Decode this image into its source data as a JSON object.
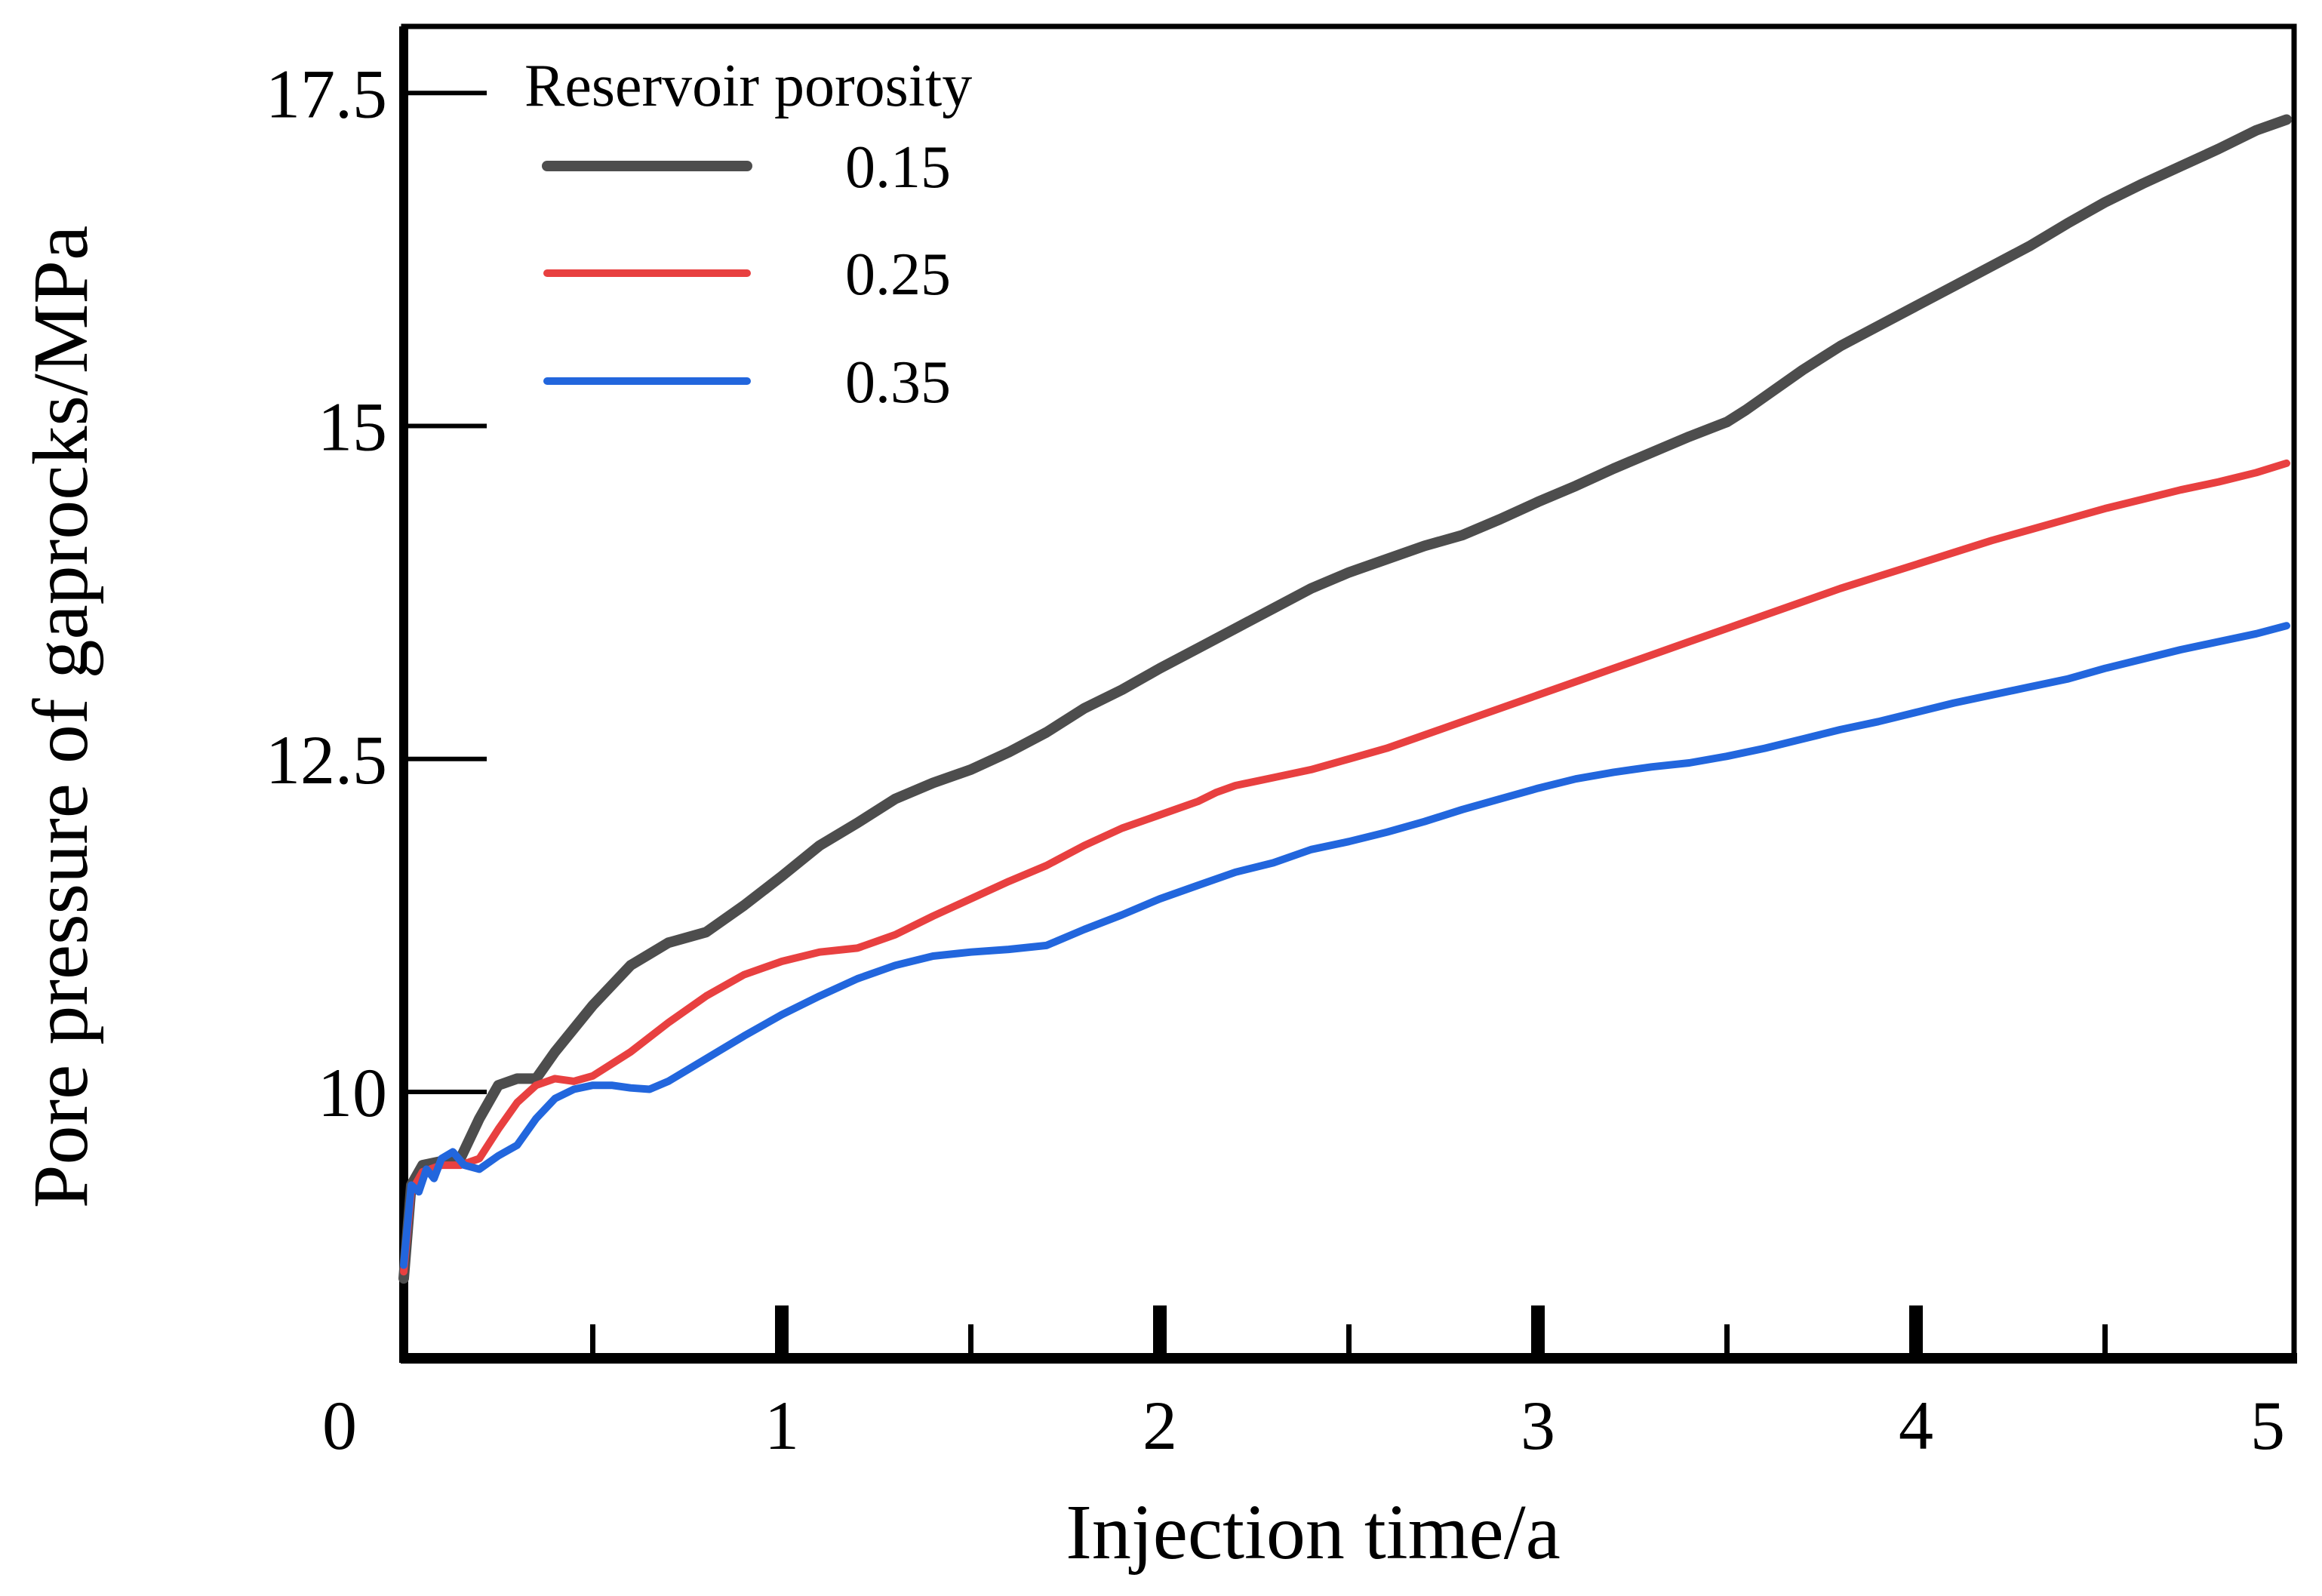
{
  "chart_data": {
    "type": "line",
    "title": "",
    "xlabel": "Injection time/a",
    "ylabel": "Pore pressure of gaprocks/MPa",
    "xlim": [
      0,
      5
    ],
    "ylim": [
      8.0,
      18.0
    ],
    "x_ticks": [
      {
        "value": 0,
        "label": "0"
      },
      {
        "value": 1,
        "label": "1"
      },
      {
        "value": 2,
        "label": "2"
      },
      {
        "value": 3,
        "label": "3"
      },
      {
        "value": 4,
        "label": "4"
      },
      {
        "value": 5,
        "label": "5"
      }
    ],
    "x_minor_ticks": [
      0.5,
      1.5,
      2.5,
      3.5,
      4.5
    ],
    "y_ticks": [
      {
        "value": 10,
        "label": "10"
      },
      {
        "value": 12.5,
        "label": "12.5"
      },
      {
        "value": 15,
        "label": "15"
      },
      {
        "value": 17.5,
        "label": "17.5"
      }
    ],
    "grid": false,
    "legend": {
      "title": "Reservoir porosity",
      "placement": "top-left"
    },
    "series": [
      {
        "name": "0.15",
        "color": "#4d4d4d",
        "points": [
          [
            0.0,
            8.6
          ],
          [
            0.02,
            9.3
          ],
          [
            0.05,
            9.45
          ],
          [
            0.1,
            9.48
          ],
          [
            0.15,
            9.5
          ],
          [
            0.2,
            9.8
          ],
          [
            0.25,
            10.05
          ],
          [
            0.3,
            10.1
          ],
          [
            0.35,
            10.1
          ],
          [
            0.4,
            10.3
          ],
          [
            0.5,
            10.65
          ],
          [
            0.6,
            10.95
          ],
          [
            0.7,
            11.12
          ],
          [
            0.8,
            11.2
          ],
          [
            0.9,
            11.4
          ],
          [
            1.0,
            11.62
          ],
          [
            1.1,
            11.85
          ],
          [
            1.2,
            12.02
          ],
          [
            1.3,
            12.2
          ],
          [
            1.4,
            12.32
          ],
          [
            1.5,
            12.42
          ],
          [
            1.6,
            12.55
          ],
          [
            1.7,
            12.7
          ],
          [
            1.8,
            12.88
          ],
          [
            1.9,
            13.02
          ],
          [
            2.0,
            13.18
          ],
          [
            2.1,
            13.33
          ],
          [
            2.2,
            13.48
          ],
          [
            2.3,
            13.63
          ],
          [
            2.4,
            13.78
          ],
          [
            2.5,
            13.9
          ],
          [
            2.6,
            14.0
          ],
          [
            2.7,
            14.1
          ],
          [
            2.8,
            14.18
          ],
          [
            2.9,
            14.3
          ],
          [
            3.0,
            14.43
          ],
          [
            3.1,
            14.55
          ],
          [
            3.2,
            14.68
          ],
          [
            3.3,
            14.8
          ],
          [
            3.4,
            14.92
          ],
          [
            3.5,
            15.03
          ],
          [
            3.55,
            15.12
          ],
          [
            3.6,
            15.22
          ],
          [
            3.7,
            15.42
          ],
          [
            3.8,
            15.6
          ],
          [
            3.9,
            15.75
          ],
          [
            4.0,
            15.9
          ],
          [
            4.1,
            16.05
          ],
          [
            4.2,
            16.2
          ],
          [
            4.3,
            16.35
          ],
          [
            4.4,
            16.52
          ],
          [
            4.5,
            16.68
          ],
          [
            4.6,
            16.82
          ],
          [
            4.7,
            16.95
          ],
          [
            4.8,
            17.08
          ],
          [
            4.9,
            17.22
          ],
          [
            4.98,
            17.3
          ]
        ]
      },
      {
        "name": "0.25",
        "color": "#e84040",
        "points": [
          [
            0.0,
            8.65
          ],
          [
            0.02,
            9.25
          ],
          [
            0.05,
            9.4
          ],
          [
            0.1,
            9.45
          ],
          [
            0.15,
            9.45
          ],
          [
            0.2,
            9.5
          ],
          [
            0.25,
            9.72
          ],
          [
            0.3,
            9.92
          ],
          [
            0.35,
            10.05
          ],
          [
            0.4,
            10.1
          ],
          [
            0.45,
            10.08
          ],
          [
            0.5,
            10.12
          ],
          [
            0.6,
            10.3
          ],
          [
            0.7,
            10.52
          ],
          [
            0.8,
            10.72
          ],
          [
            0.9,
            10.88
          ],
          [
            1.0,
            10.98
          ],
          [
            1.1,
            11.05
          ],
          [
            1.2,
            11.08
          ],
          [
            1.3,
            11.18
          ],
          [
            1.4,
            11.32
          ],
          [
            1.5,
            11.45
          ],
          [
            1.6,
            11.58
          ],
          [
            1.7,
            11.7
          ],
          [
            1.8,
            11.85
          ],
          [
            1.9,
            11.98
          ],
          [
            2.0,
            12.08
          ],
          [
            2.1,
            12.18
          ],
          [
            2.15,
            12.25
          ],
          [
            2.2,
            12.3
          ],
          [
            2.3,
            12.36
          ],
          [
            2.4,
            12.42
          ],
          [
            2.5,
            12.5
          ],
          [
            2.6,
            12.58
          ],
          [
            2.7,
            12.68
          ],
          [
            2.8,
            12.78
          ],
          [
            2.9,
            12.88
          ],
          [
            3.0,
            12.98
          ],
          [
            3.1,
            13.08
          ],
          [
            3.2,
            13.18
          ],
          [
            3.3,
            13.28
          ],
          [
            3.4,
            13.38
          ],
          [
            3.5,
            13.48
          ],
          [
            3.6,
            13.58
          ],
          [
            3.7,
            13.68
          ],
          [
            3.8,
            13.78
          ],
          [
            3.9,
            13.87
          ],
          [
            4.0,
            13.96
          ],
          [
            4.1,
            14.05
          ],
          [
            4.2,
            14.14
          ],
          [
            4.3,
            14.22
          ],
          [
            4.4,
            14.3
          ],
          [
            4.5,
            14.38
          ],
          [
            4.6,
            14.45
          ],
          [
            4.7,
            14.52
          ],
          [
            4.8,
            14.58
          ],
          [
            4.9,
            14.65
          ],
          [
            4.98,
            14.72
          ]
        ]
      },
      {
        "name": "0.35",
        "color": "#2266dd",
        "points": [
          [
            0.0,
            8.7
          ],
          [
            0.02,
            9.3
          ],
          [
            0.04,
            9.25
          ],
          [
            0.06,
            9.42
          ],
          [
            0.08,
            9.35
          ],
          [
            0.1,
            9.5
          ],
          [
            0.13,
            9.55
          ],
          [
            0.16,
            9.45
          ],
          [
            0.2,
            9.42
          ],
          [
            0.25,
            9.52
          ],
          [
            0.3,
            9.6
          ],
          [
            0.35,
            9.8
          ],
          [
            0.4,
            9.95
          ],
          [
            0.45,
            10.02
          ],
          [
            0.5,
            10.05
          ],
          [
            0.55,
            10.05
          ],
          [
            0.6,
            10.03
          ],
          [
            0.65,
            10.02
          ],
          [
            0.7,
            10.08
          ],
          [
            0.8,
            10.25
          ],
          [
            0.9,
            10.42
          ],
          [
            1.0,
            10.58
          ],
          [
            1.1,
            10.72
          ],
          [
            1.2,
            10.85
          ],
          [
            1.3,
            10.95
          ],
          [
            1.4,
            11.02
          ],
          [
            1.5,
            11.05
          ],
          [
            1.6,
            11.07
          ],
          [
            1.7,
            11.1
          ],
          [
            1.8,
            11.22
          ],
          [
            1.9,
            11.33
          ],
          [
            2.0,
            11.45
          ],
          [
            2.1,
            11.55
          ],
          [
            2.2,
            11.65
          ],
          [
            2.3,
            11.72
          ],
          [
            2.4,
            11.82
          ],
          [
            2.5,
            11.88
          ],
          [
            2.6,
            11.95
          ],
          [
            2.7,
            12.03
          ],
          [
            2.8,
            12.12
          ],
          [
            2.9,
            12.2
          ],
          [
            3.0,
            12.28
          ],
          [
            3.1,
            12.35
          ],
          [
            3.2,
            12.4
          ],
          [
            3.3,
            12.44
          ],
          [
            3.4,
            12.47
          ],
          [
            3.5,
            12.52
          ],
          [
            3.6,
            12.58
          ],
          [
            3.7,
            12.65
          ],
          [
            3.8,
            12.72
          ],
          [
            3.9,
            12.78
          ],
          [
            4.0,
            12.85
          ],
          [
            4.1,
            12.92
          ],
          [
            4.2,
            12.98
          ],
          [
            4.3,
            13.04
          ],
          [
            4.4,
            13.1
          ],
          [
            4.5,
            13.18
          ],
          [
            4.6,
            13.25
          ],
          [
            4.7,
            13.32
          ],
          [
            4.8,
            13.38
          ],
          [
            4.9,
            13.44
          ],
          [
            4.98,
            13.5
          ]
        ]
      }
    ]
  }
}
